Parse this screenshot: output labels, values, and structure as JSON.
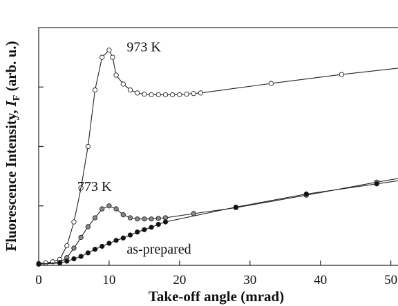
{
  "chart_data": {
    "type": "scatter",
    "xlabel": "Take-off angle (mrad)",
    "ylabel_main": "Fluorescence Intensity, ",
    "ylabel_symbol": "I",
    "ylabel_sub": "F",
    "ylabel_unit": " (arb. u.)",
    "xlim": [
      0,
      52
    ],
    "ylim": [
      0,
      4
    ],
    "xticks": [
      0,
      10,
      20,
      30,
      40,
      50
    ],
    "yticks_unlabeled": [
      1,
      2,
      3
    ],
    "grid": false,
    "legend": "none",
    "series": [
      {
        "name": "973 K",
        "marker_color": "#ffffff",
        "label_pos": [
          12.5,
          3.6
        ],
        "points": [
          [
            0,
            0.03
          ],
          [
            1,
            0.04
          ],
          [
            2,
            0.06
          ],
          [
            3,
            0.1
          ],
          [
            4,
            0.33
          ],
          [
            5,
            0.73
          ],
          [
            6,
            1.3
          ],
          [
            7,
            2.0
          ],
          [
            8,
            2.95
          ],
          [
            9,
            3.5
          ],
          [
            10,
            3.62
          ],
          [
            10.5,
            3.5
          ],
          [
            11,
            3.2
          ],
          [
            12,
            3.05
          ],
          [
            13,
            2.95
          ],
          [
            14,
            2.9
          ],
          [
            15,
            2.88
          ],
          [
            16,
            2.87
          ],
          [
            17,
            2.87
          ],
          [
            18,
            2.87
          ],
          [
            19,
            2.87
          ],
          [
            20,
            2.87
          ],
          [
            21,
            2.88
          ],
          [
            22,
            2.89
          ],
          [
            23,
            2.9
          ],
          [
            33,
            3.06
          ],
          [
            43,
            3.21
          ]
        ],
        "line_end": [
          52,
          3.33
        ]
      },
      {
        "name": "773 K",
        "marker_color": "#8a8a8a",
        "label_pos": [
          5.5,
          1.25
        ],
        "points": [
          [
            0,
            0.02
          ],
          [
            3,
            0.05
          ],
          [
            4,
            0.13
          ],
          [
            5,
            0.29
          ],
          [
            6,
            0.47
          ],
          [
            7,
            0.65
          ],
          [
            8,
            0.8
          ],
          [
            9,
            0.95
          ],
          [
            10,
            1.0
          ],
          [
            11,
            0.95
          ],
          [
            12,
            0.85
          ],
          [
            13,
            0.8
          ],
          [
            14,
            0.78
          ],
          [
            15,
            0.78
          ],
          [
            16,
            0.78
          ],
          [
            17,
            0.79
          ],
          [
            18,
            0.8
          ],
          [
            22,
            0.87
          ],
          [
            28,
            0.97
          ],
          [
            38,
            1.18
          ],
          [
            48,
            1.4
          ]
        ],
        "line_end": [
          52,
          1.48
        ]
      },
      {
        "name": "as-prepared",
        "marker_color": "#111111",
        "label_pos": [
          12.5,
          0.2
        ],
        "points": [
          [
            0,
            0.02
          ],
          [
            3,
            0.04
          ],
          [
            4,
            0.07
          ],
          [
            5,
            0.11
          ],
          [
            6,
            0.15
          ],
          [
            7,
            0.21
          ],
          [
            8,
            0.27
          ],
          [
            9,
            0.32
          ],
          [
            10,
            0.37
          ],
          [
            11,
            0.42
          ],
          [
            12,
            0.46
          ],
          [
            13,
            0.51
          ],
          [
            14,
            0.56
          ],
          [
            15,
            0.6
          ],
          [
            16,
            0.64
          ],
          [
            17,
            0.69
          ],
          [
            18,
            0.73
          ],
          [
            28,
            0.98
          ],
          [
            38,
            1.2
          ],
          [
            48,
            1.37
          ]
        ],
        "line_end": [
          52,
          1.44
        ]
      }
    ]
  }
}
